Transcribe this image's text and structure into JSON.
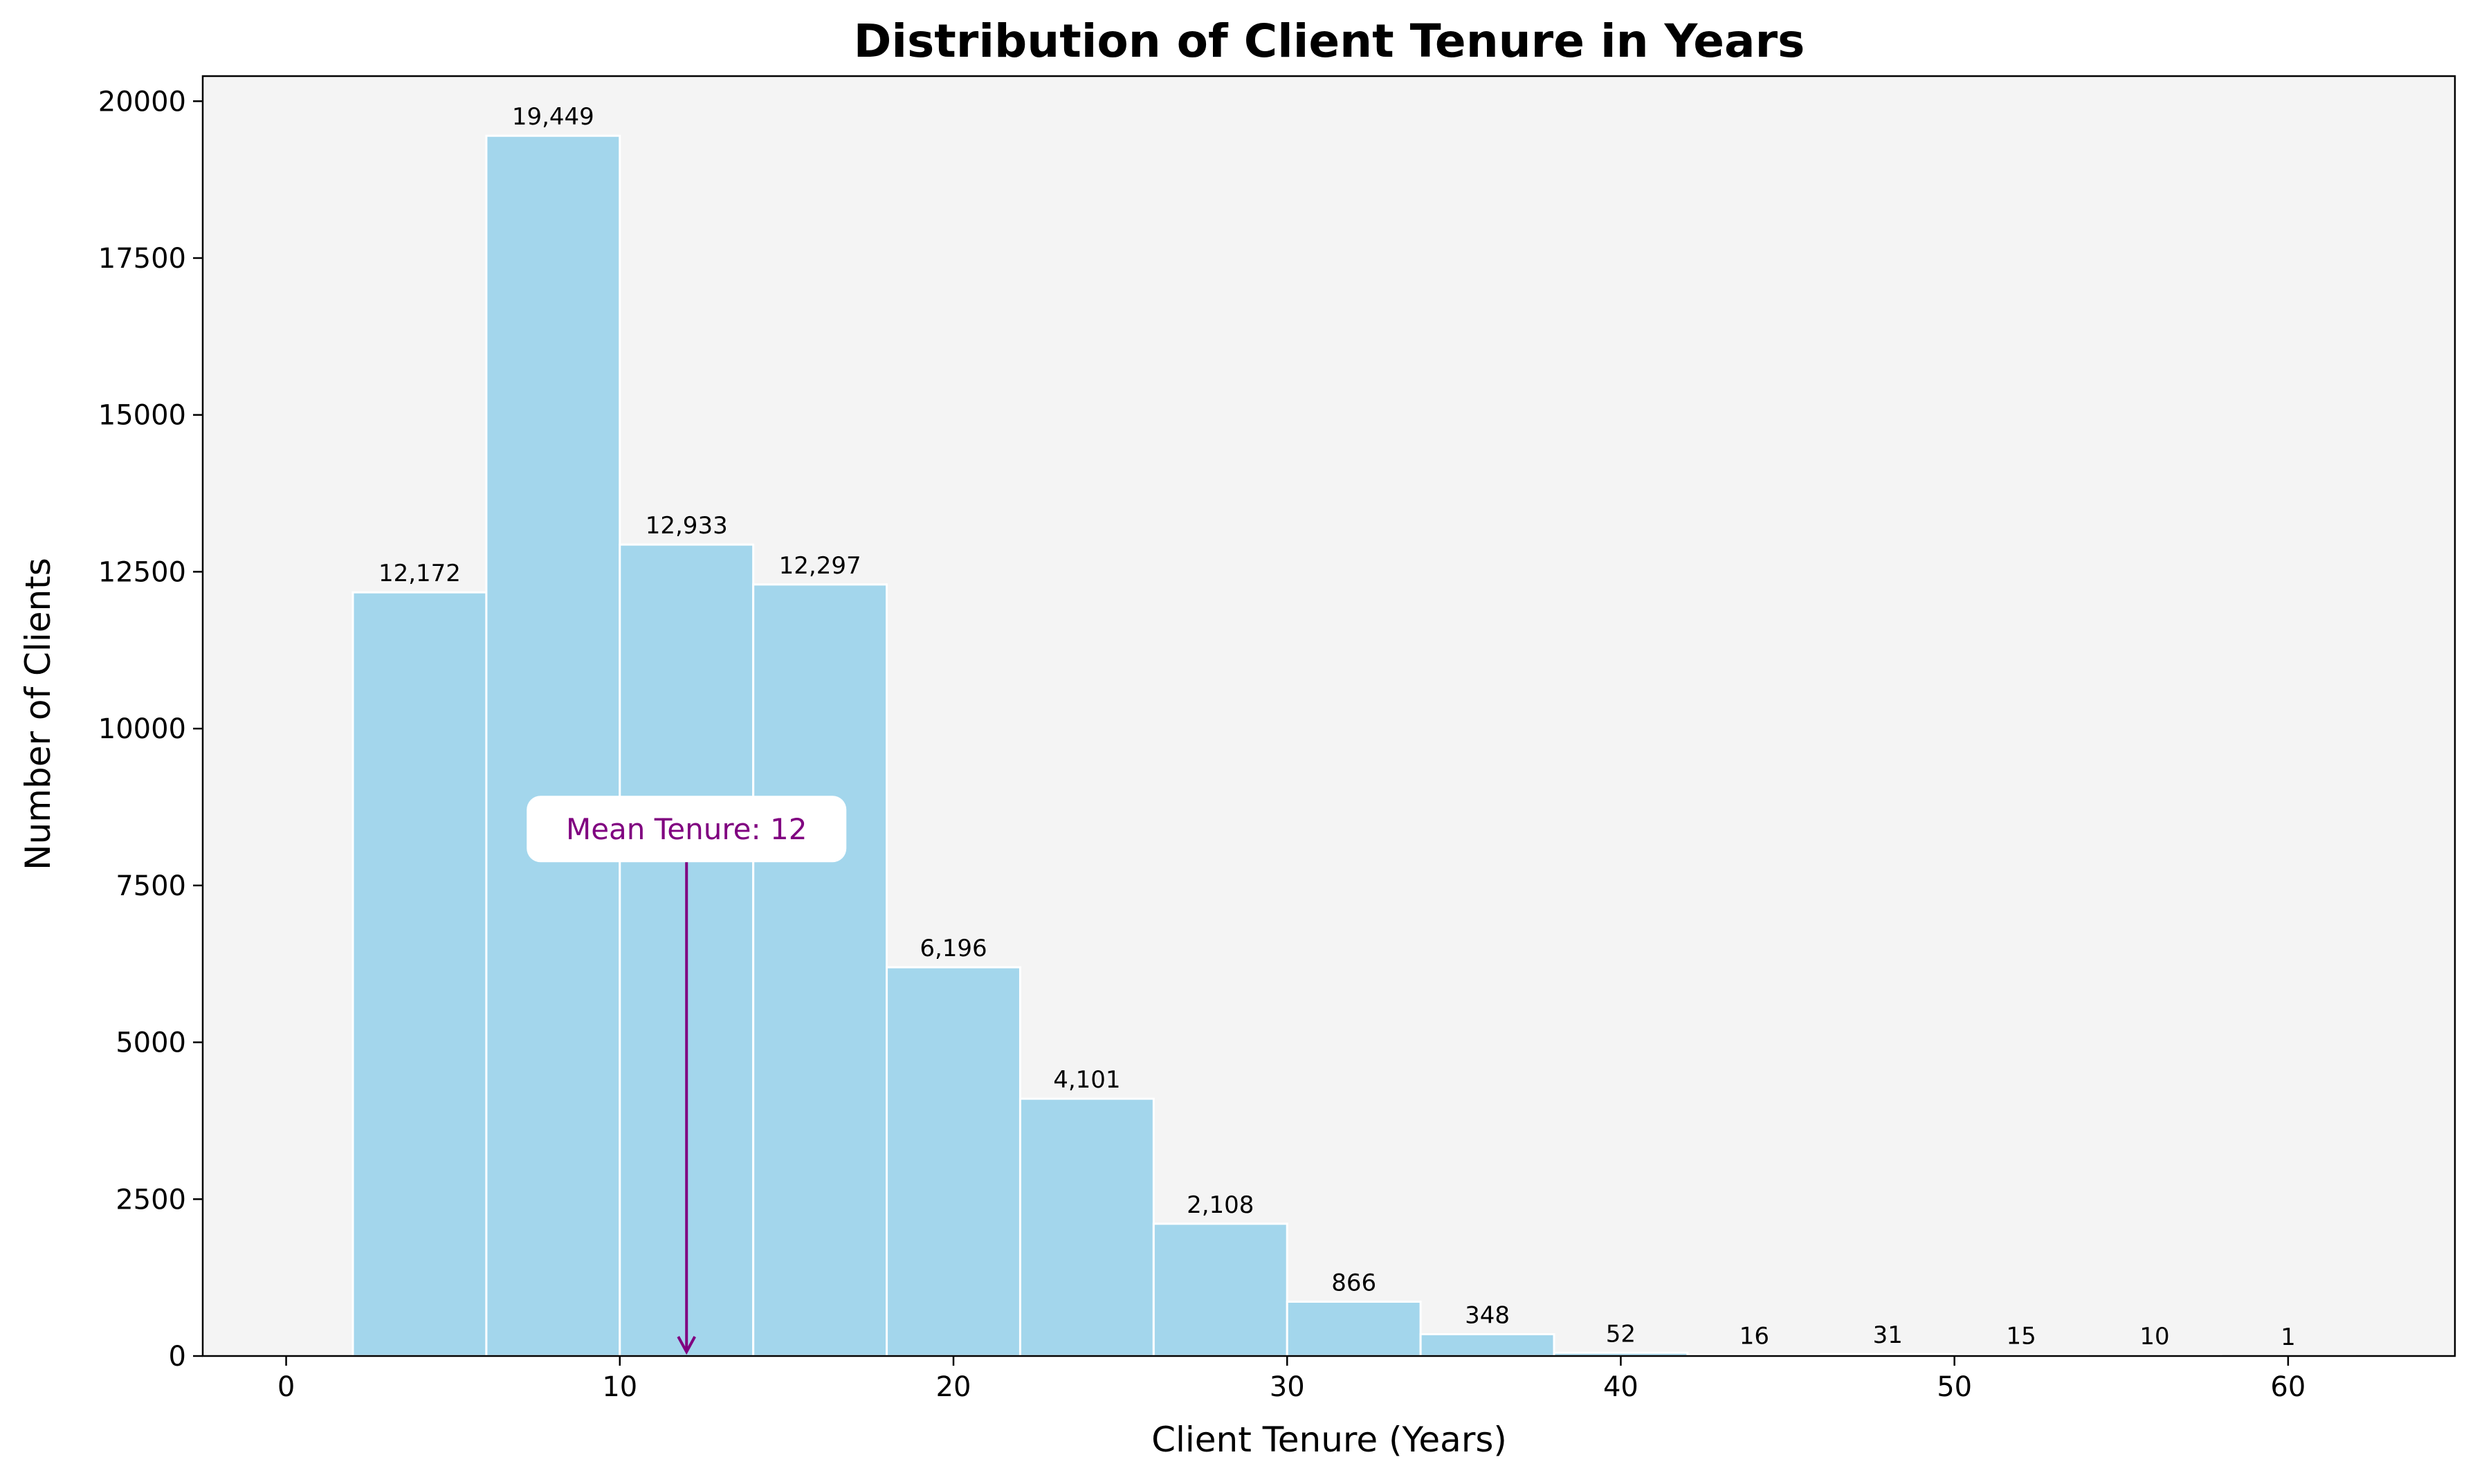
{
  "chart_data": {
    "type": "bar",
    "title": "Distribution of Client Tenure in Years",
    "xlabel": "Client Tenure (Years)",
    "ylabel": "Number of Clients",
    "xlim": [
      -2.5,
      65
    ],
    "ylim": [
      0,
      20400
    ],
    "xticks": [
      0,
      10,
      20,
      30,
      40,
      50,
      60
    ],
    "yticks": [
      0,
      2500,
      5000,
      7500,
      10000,
      12500,
      15000,
      17500,
      20000
    ],
    "bins": [
      {
        "x0": 2,
        "x1": 6,
        "value": 12172,
        "label": "12,172"
      },
      {
        "x0": 6,
        "x1": 10,
        "value": 19449,
        "label": "19,449"
      },
      {
        "x0": 10,
        "x1": 14,
        "value": 12933,
        "label": "12,933"
      },
      {
        "x0": 14,
        "x1": 18,
        "value": 12297,
        "label": "12,297"
      },
      {
        "x0": 18,
        "x1": 22,
        "value": 6196,
        "label": "6,196"
      },
      {
        "x0": 22,
        "x1": 26,
        "value": 4101,
        "label": "4,101"
      },
      {
        "x0": 26,
        "x1": 30,
        "value": 2108,
        "label": "2,108"
      },
      {
        "x0": 30,
        "x1": 34,
        "value": 866,
        "label": "866"
      },
      {
        "x0": 34,
        "x1": 38,
        "value": 348,
        "label": "348"
      },
      {
        "x0": 38,
        "x1": 42,
        "value": 52,
        "label": "52"
      },
      {
        "x0": 42,
        "x1": 46,
        "value": 16,
        "label": "16"
      },
      {
        "x0": 46,
        "x1": 50,
        "value": 31,
        "label": "31"
      },
      {
        "x0": 50,
        "x1": 54,
        "value": 15,
        "label": "15"
      },
      {
        "x0": 54,
        "x1": 58,
        "value": 10,
        "label": "10"
      },
      {
        "x0": 58,
        "x1": 62,
        "value": 1,
        "label": "1"
      }
    ],
    "annotation": {
      "text": "Mean Tenure: 12",
      "x": 12,
      "text_y": 8400,
      "arrow_tip_y": 0,
      "color": "#800080"
    },
    "colors": {
      "bar_fill": "#a3d6ec",
      "bar_edge": "#ffffff",
      "plot_background": "#f4f4f4"
    },
    "grid": false,
    "legend": "none"
  }
}
